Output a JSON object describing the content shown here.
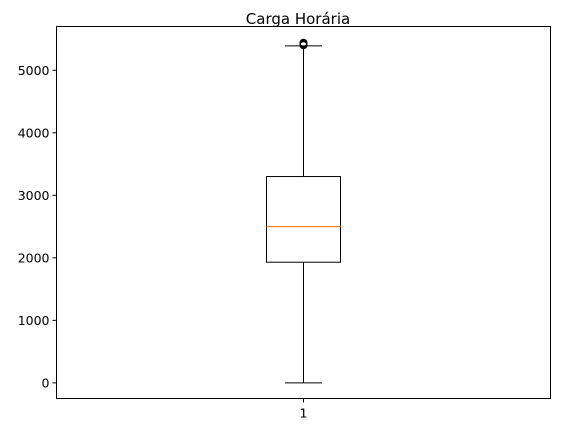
{
  "chart_data": {
    "type": "box",
    "title": "Carga Horária",
    "xlabel": "",
    "ylabel": "",
    "categories": [
      "1"
    ],
    "ylim": [
      -250,
      5700
    ],
    "yticks": [
      0,
      1000,
      2000,
      3000,
      4000,
      5000
    ],
    "grid": false,
    "boxes": [
      {
        "category": "1",
        "whisker_low": 0,
        "q1": 1930,
        "median": 2500,
        "q3": 3300,
        "whisker_high": 5390,
        "outliers": [
          5400,
          5410,
          5420,
          5430,
          5440
        ]
      }
    ],
    "colors": {
      "box": "#000000",
      "median": "#ff7f0e",
      "whisker": "#000000",
      "outlier": "#000000"
    }
  }
}
